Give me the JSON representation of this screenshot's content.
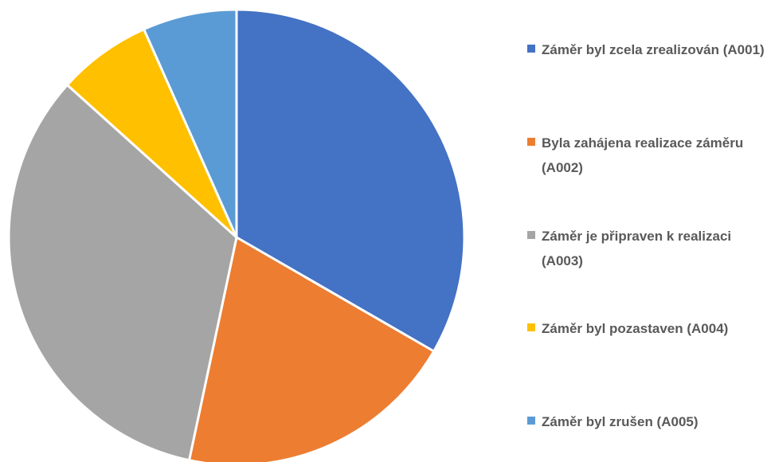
{
  "chart_data": {
    "type": "pie",
    "categories": [
      "Záměr byl zcela zrealizován (A001)",
      "Byla zahájena realizace záměru (A002)",
      "Záměr je připraven k realizaci (A003)",
      "Záměr byl pozastaven (A004)",
      "Záměr byl zrušen (A005)"
    ],
    "values": [
      5,
      3,
      5,
      1,
      1
    ],
    "colors": [
      "#4472c4",
      "#ed7d31",
      "#a5a5a5",
      "#ffc000",
      "#5b9bd5"
    ],
    "legend": "right"
  }
}
